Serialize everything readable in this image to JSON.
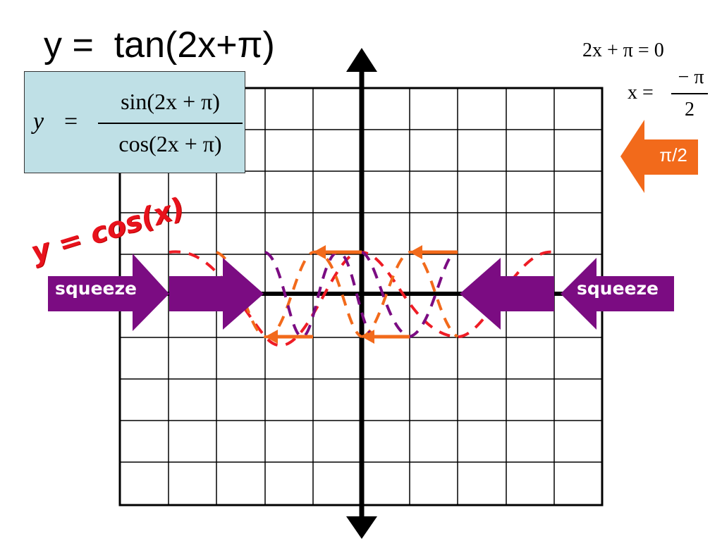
{
  "title": "y =  tan(2x+π)",
  "formula": {
    "y": "y",
    "eq": "=",
    "numerator": "sin(2x + π)",
    "denominator": "cos(2x + π)"
  },
  "solution": {
    "line1": "2x + π = 0",
    "line2_left": "x =",
    "line2_num": "− π",
    "line2_den": "2"
  },
  "shift_label": "π/2",
  "squeeze_left": "squeeze",
  "squeeze_right": "squeeze",
  "curve_label": "y = cos(x)",
  "colors": {
    "orange": "#f26a1b",
    "purple": "#7b0c82",
    "red": "#ee1c25",
    "formula_bg": "#bfe0e6"
  }
}
